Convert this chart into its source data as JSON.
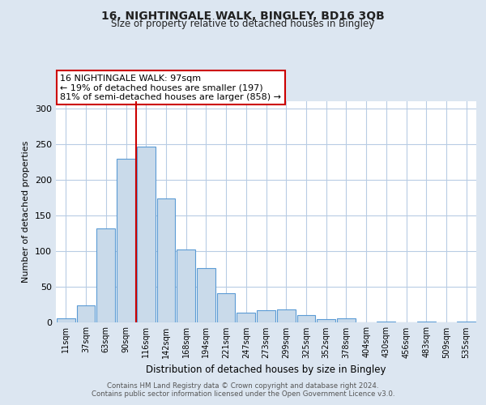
{
  "title": "16, NIGHTINGALE WALK, BINGLEY, BD16 3QB",
  "subtitle": "Size of property relative to detached houses in Bingley",
  "xlabel": "Distribution of detached houses by size in Bingley",
  "ylabel": "Number of detached properties",
  "bar_labels": [
    "11sqm",
    "37sqm",
    "63sqm",
    "90sqm",
    "116sqm",
    "142sqm",
    "168sqm",
    "194sqm",
    "221sqm",
    "247sqm",
    "273sqm",
    "299sqm",
    "325sqm",
    "352sqm",
    "378sqm",
    "404sqm",
    "430sqm",
    "456sqm",
    "483sqm",
    "509sqm",
    "535sqm"
  ],
  "bar_values": [
    5,
    23,
    131,
    229,
    246,
    173,
    102,
    76,
    40,
    13,
    17,
    18,
    10,
    4,
    5,
    0,
    1,
    0,
    1,
    0,
    1
  ],
  "bar_color": "#c9daea",
  "bar_edge_color": "#5b9bd5",
  "background_color": "#dce6f1",
  "plot_bg_color": "#ffffff",
  "grid_color": "#b8cce4",
  "vline_color": "#cc0000",
  "annotation_text": "16 NIGHTINGALE WALK: 97sqm\n← 19% of detached houses are smaller (197)\n81% of semi-detached houses are larger (858) →",
  "annotation_box_color": "#ffffff",
  "annotation_box_edge_color": "#cc0000",
  "ylim": [
    0,
    310
  ],
  "yticks": [
    0,
    50,
    100,
    150,
    200,
    250,
    300
  ],
  "footer_line1": "Contains HM Land Registry data © Crown copyright and database right 2024.",
  "footer_line2": "Contains public sector information licensed under the Open Government Licence v3.0."
}
